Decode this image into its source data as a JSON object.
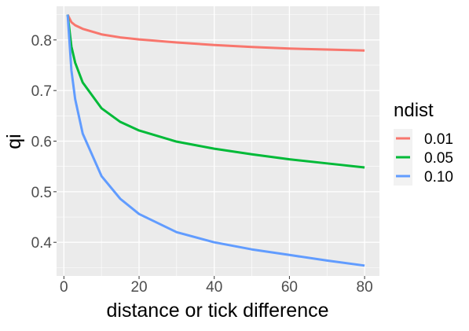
{
  "chart_data": {
    "type": "line",
    "title": "",
    "xlabel": "distance or tick difference",
    "ylabel": "qi",
    "xlim": [
      -1.95,
      83.95
    ],
    "ylim": [
      0.3335,
      0.8665
    ],
    "xticks": [
      0,
      20,
      40,
      60,
      80
    ],
    "xtick_labels": [
      "0",
      "20",
      "40",
      "60",
      "80"
    ],
    "xminor": [
      10,
      30,
      50,
      70
    ],
    "yticks": [
      0.4,
      0.5,
      0.6,
      0.7,
      0.8
    ],
    "ytick_labels": [
      "0.4",
      "0.5",
      "0.6",
      "0.7",
      "0.8"
    ],
    "yminor": [
      0.35,
      0.45,
      0.55,
      0.65,
      0.75,
      0.85
    ],
    "grid": true,
    "legend": {
      "title": "ndist",
      "position": "right"
    },
    "series": [
      {
        "name": "0.01",
        "color": "#F8766D",
        "points": [
          [
            1,
            0.85
          ],
          [
            2,
            0.835
          ],
          [
            3,
            0.829
          ],
          [
            5,
            0.822
          ],
          [
            10,
            0.811
          ],
          [
            15,
            0.805
          ],
          [
            20,
            0.801
          ],
          [
            30,
            0.795
          ],
          [
            40,
            0.79
          ],
          [
            50,
            0.786
          ],
          [
            60,
            0.783
          ],
          [
            70,
            0.781
          ],
          [
            80,
            0.779
          ]
        ]
      },
      {
        "name": "0.05",
        "color": "#00BA38",
        "points": [
          [
            1,
            0.85
          ],
          [
            2,
            0.787
          ],
          [
            3,
            0.755
          ],
          [
            5,
            0.716
          ],
          [
            10,
            0.665
          ],
          [
            15,
            0.638
          ],
          [
            20,
            0.621
          ],
          [
            30,
            0.599
          ],
          [
            40,
            0.585
          ],
          [
            50,
            0.574
          ],
          [
            60,
            0.564
          ],
          [
            70,
            0.556
          ],
          [
            80,
            0.548
          ]
        ]
      },
      {
        "name": "0.10",
        "color": "#619CFF",
        "points": [
          [
            1,
            0.85
          ],
          [
            2,
            0.74
          ],
          [
            3,
            0.683
          ],
          [
            5,
            0.615
          ],
          [
            10,
            0.531
          ],
          [
            15,
            0.486
          ],
          [
            20,
            0.456
          ],
          [
            30,
            0.42
          ],
          [
            40,
            0.4
          ],
          [
            50,
            0.386
          ],
          [
            60,
            0.375
          ],
          [
            70,
            0.364
          ],
          [
            80,
            0.354
          ]
        ]
      }
    ]
  }
}
